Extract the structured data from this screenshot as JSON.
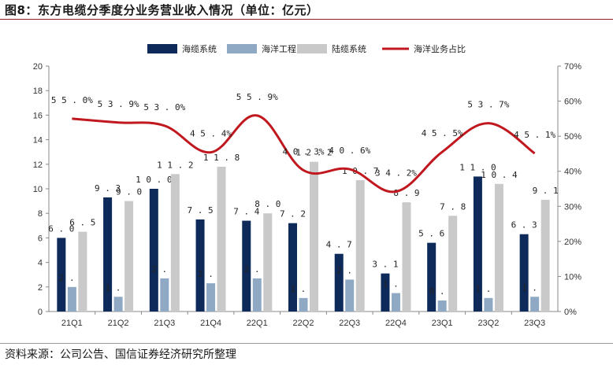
{
  "header": {
    "title": "图8：东方电缆分季度分业务营业收入情况（单位：亿元）"
  },
  "footer": {
    "source": "资料来源：公司公告、国信证券经济研究所整理"
  },
  "colors": {
    "haolan": "#0d2a5a",
    "haiyang": "#8fa8c4",
    "lulan": "#c9c9c9",
    "ratio": "#c0181e"
  },
  "chart_data": {
    "type": "bar",
    "categories": [
      "21Q1",
      "21Q2",
      "21Q3",
      "21Q4",
      "22Q1",
      "22Q2",
      "22Q3",
      "22Q4",
      "23Q1",
      "23Q2",
      "23Q3"
    ],
    "series": [
      {
        "name": "海缆系统",
        "type": "bar",
        "axis": "left",
        "values": [
          6.0,
          9.3,
          10.0,
          7.5,
          7.4,
          7.2,
          4.7,
          3.1,
          5.6,
          11.0,
          6.3
        ],
        "labels": [
          "6.0",
          "9.3",
          "10.0",
          "7.5",
          "7.4",
          "7.2",
          "4.7",
          "3.1",
          "5.6",
          "11.0",
          "6.3"
        ]
      },
      {
        "name": "海洋工程",
        "type": "bar",
        "axis": "left",
        "values": [
          2.0,
          1.2,
          2.7,
          2.3,
          2.7,
          1.1,
          2.6,
          1.5,
          0.9,
          1.1,
          1.2
        ],
        "labels": [
          "2.0",
          "1.2",
          "2.7",
          "2.3",
          "2.7",
          "1.1",
          "2.6",
          "1.5",
          "0.9",
          "1.1",
          "1.2"
        ]
      },
      {
        "name": "陆缆系统",
        "type": "bar",
        "axis": "left",
        "values": [
          6.5,
          9.0,
          11.2,
          11.8,
          8.0,
          12.2,
          10.7,
          8.9,
          7.8,
          10.4,
          9.1
        ],
        "labels": [
          "6.5",
          "9.0",
          "11.2",
          "11.8",
          "8.0",
          "12.2",
          "10.7",
          "8.9",
          "7.8",
          "10.4",
          "9.1"
        ]
      },
      {
        "name": "海洋业务占比",
        "type": "line",
        "axis": "right",
        "values": [
          55.0,
          53.9,
          53.0,
          45.4,
          55.9,
          40.3,
          40.6,
          34.2,
          45.5,
          53.7,
          45.1
        ],
        "labels": [
          "55.0%",
          "53.9%",
          "53.0%",
          "45.4%",
          "55.9%",
          "40.3%",
          "40.6%",
          "34.2%",
          "45.5%",
          "53.7%",
          "45.1%"
        ]
      }
    ],
    "y_left": {
      "min": 0,
      "max": 20,
      "ticks": [
        "0",
        "2",
        "4",
        "6",
        "8",
        "10",
        "12",
        "14",
        "16",
        "18",
        "20"
      ]
    },
    "y_right": {
      "min": 0,
      "max": 70,
      "ticks": [
        "0%",
        "10%",
        "20%",
        "30%",
        "40%",
        "50%",
        "60%",
        "70%"
      ]
    },
    "legend_position": "top-center",
    "grid": false
  }
}
